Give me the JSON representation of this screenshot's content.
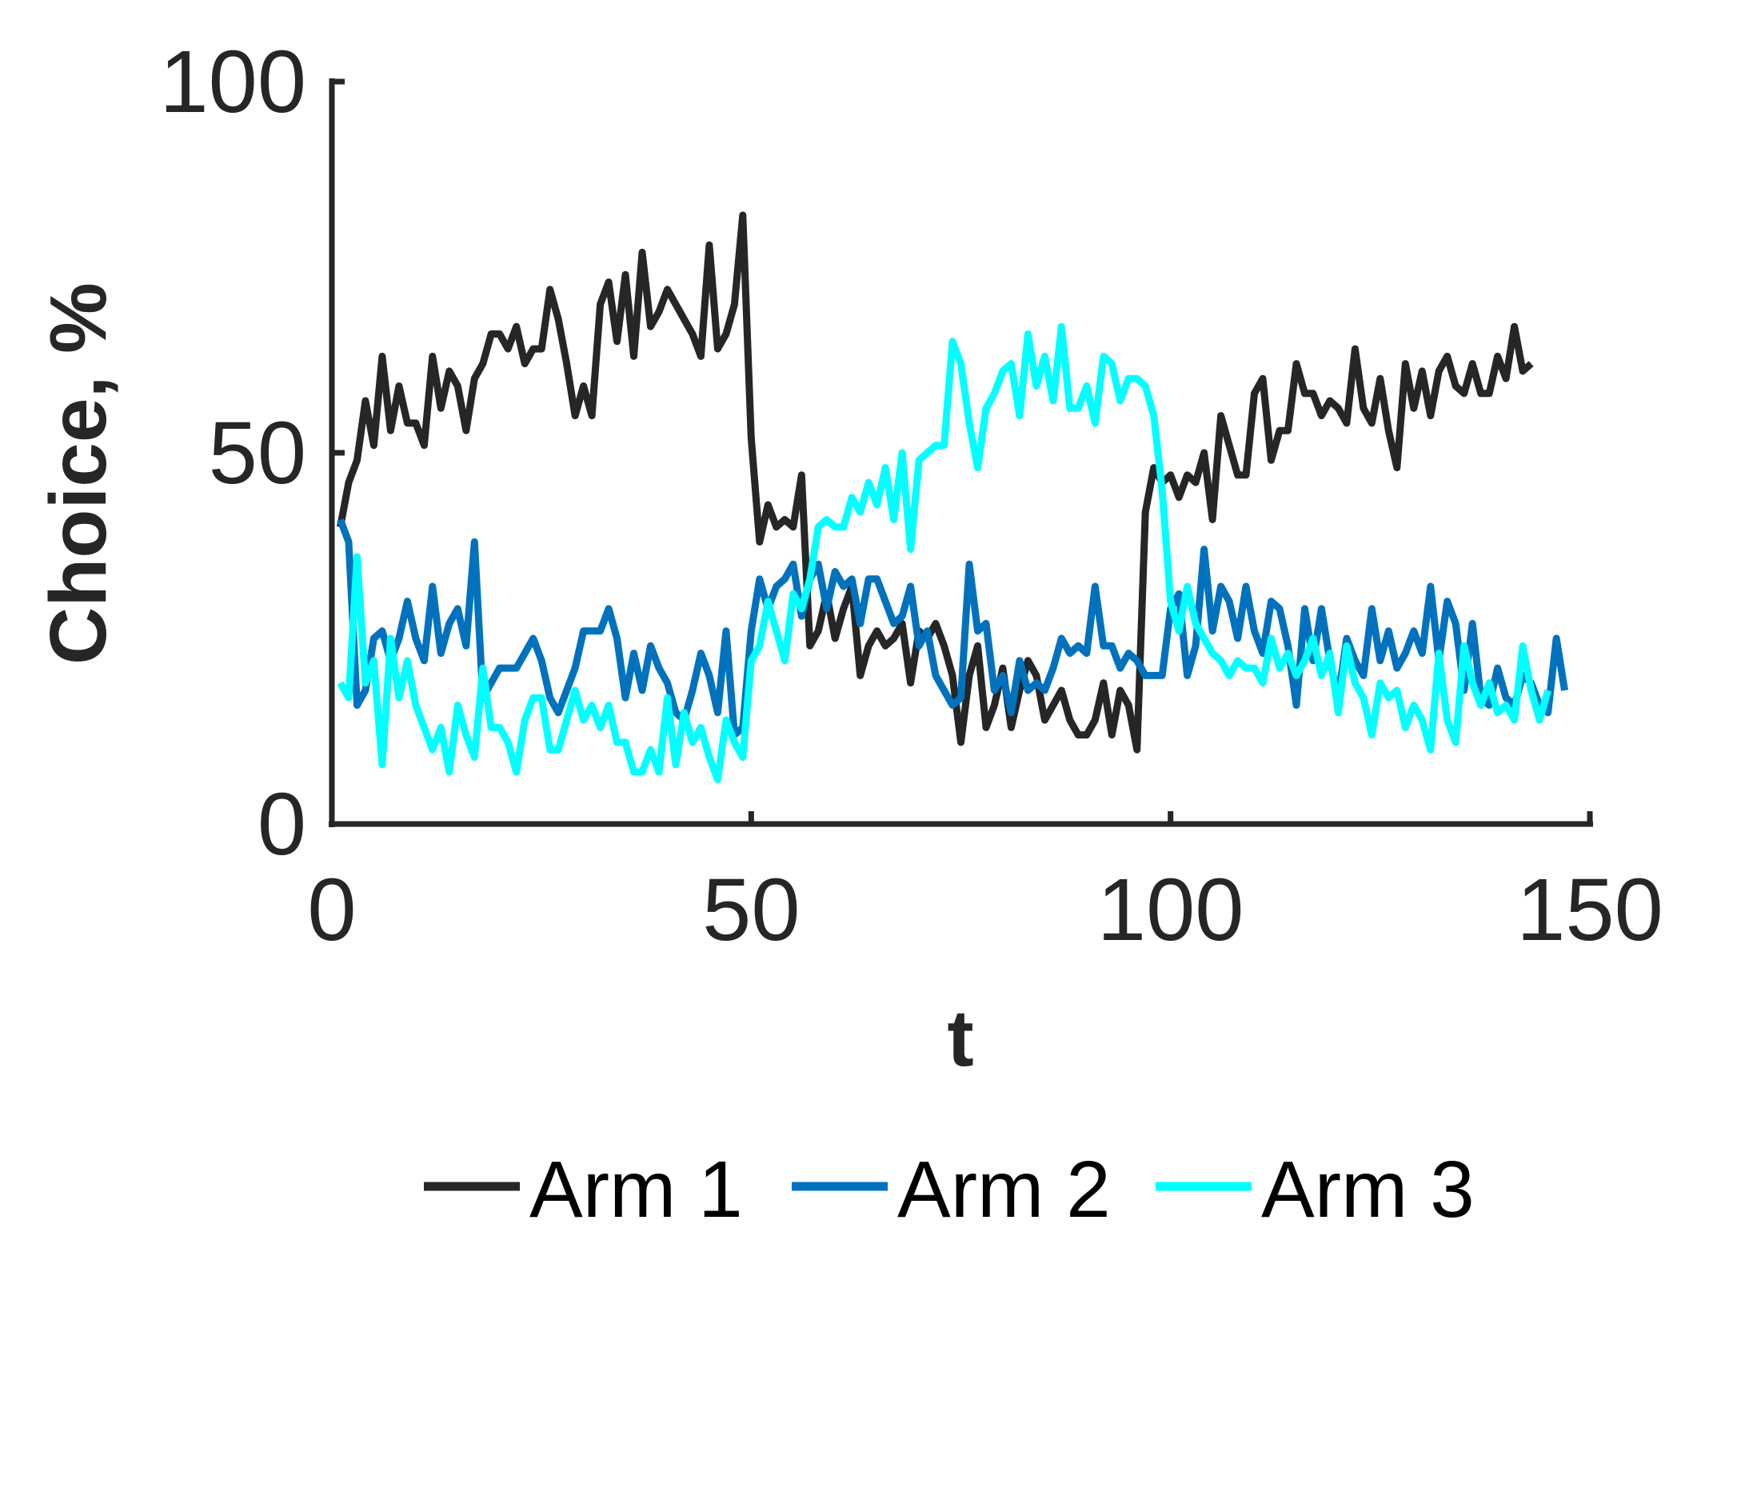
{
  "chart_data": {
    "type": "line",
    "xlabel": "t",
    "ylabel": "Choice, %",
    "xlim": [
      0,
      150
    ],
    "ylim": [
      0,
      100
    ],
    "xticks": [
      0,
      50,
      100,
      150
    ],
    "yticks": [
      0,
      50,
      100
    ],
    "grid": false,
    "legend_placement": "bottom",
    "series": [
      {
        "name": "Arm 1",
        "color": "#262626",
        "values": [
          40,
          46,
          49,
          57,
          51,
          63,
          53,
          59,
          54,
          54,
          51,
          63,
          56,
          61,
          59,
          53,
          60,
          62,
          66,
          66,
          64,
          67,
          62,
          64,
          64,
          72,
          68,
          62,
          55,
          59,
          55,
          70,
          73,
          65,
          74,
          63,
          77,
          67,
          69,
          72,
          70,
          68,
          66,
          63,
          78,
          64,
          66,
          70,
          82,
          52,
          38,
          43,
          40,
          41,
          40,
          47,
          24,
          26,
          31,
          25,
          29,
          32,
          20,
          24,
          26,
          24,
          25,
          27,
          19,
          26,
          25,
          27,
          24,
          20,
          11,
          20,
          24,
          13,
          16,
          21,
          13,
          18,
          22,
          20,
          14,
          16,
          18,
          14,
          12,
          12,
          14,
          19,
          12,
          18,
          16,
          10,
          42,
          48,
          46,
          47,
          44,
          47,
          46,
          50,
          41,
          55,
          51,
          47,
          47,
          58,
          60,
          49,
          53,
          53,
          62,
          58,
          58,
          55,
          57,
          56,
          54,
          64,
          56,
          54,
          60,
          53,
          48,
          62,
          56,
          61,
          55,
          61,
          63,
          59,
          58,
          62,
          58,
          58,
          63,
          60,
          67,
          61,
          62
        ]
      },
      {
        "name": "Arm 2",
        "color": "#0072bd",
        "values": [
          41,
          38,
          16,
          18,
          25,
          26,
          22,
          25,
          30,
          25,
          22,
          32,
          23,
          27,
          29,
          24,
          38,
          17,
          19,
          21,
          21,
          21,
          23,
          25,
          22,
          17,
          15,
          18,
          21,
          26,
          26,
          26,
          29,
          25,
          17,
          23,
          18,
          24,
          21,
          19,
          15,
          14,
          18,
          23,
          20,
          15,
          26,
          12,
          13,
          26,
          33,
          29,
          32,
          33,
          35,
          28,
          33,
          35,
          29,
          34,
          32,
          33,
          27,
          33,
          33,
          30,
          27,
          28,
          32,
          24,
          26,
          20,
          18,
          16,
          17,
          35,
          26,
          27,
          18,
          20,
          15,
          22,
          18,
          19,
          18,
          21,
          25,
          23,
          24,
          23,
          32,
          24,
          24,
          21,
          23,
          22,
          20,
          20,
          20,
          29,
          31,
          20,
          24,
          37,
          26,
          32,
          30,
          25,
          32,
          26,
          23,
          30,
          29,
          24,
          16,
          29,
          22,
          29,
          22,
          17,
          25,
          22,
          20,
          29,
          22,
          26,
          21,
          23,
          26,
          23,
          32,
          22,
          30,
          27,
          18,
          27,
          17,
          16,
          21,
          17,
          16,
          20,
          19,
          16,
          15,
          25,
          18
        ]
      },
      {
        "name": "Arm 3",
        "color": "#00ffff",
        "values": [
          19,
          17,
          36,
          19,
          22,
          8,
          25,
          17,
          22,
          16,
          13,
          10,
          13,
          7,
          16,
          12,
          9,
          21,
          13,
          13,
          11,
          7,
          14,
          17,
          17,
          10,
          10,
          14,
          18,
          14,
          16,
          13,
          16,
          11,
          11,
          7,
          7,
          10,
          7,
          17,
          8,
          15,
          11,
          13,
          9,
          6,
          14,
          11,
          9,
          22,
          24,
          30,
          26,
          22,
          31,
          29,
          33,
          40,
          41,
          40,
          40,
          44,
          42,
          46,
          43,
          48,
          41,
          50,
          37,
          49,
          50,
          51,
          51,
          65,
          62,
          54,
          48,
          56,
          58,
          61,
          62,
          55,
          66,
          59,
          63,
          57,
          67,
          56,
          56,
          59,
          54,
          63,
          62,
          57,
          60,
          60,
          59,
          55,
          45,
          30,
          26,
          32,
          27,
          25,
          23,
          22,
          20,
          22,
          21,
          21,
          19,
          25,
          21,
          23,
          20,
          22,
          25,
          20,
          23,
          15,
          24,
          19,
          17,
          12,
          19,
          17,
          18,
          13,
          16,
          14,
          10,
          23,
          14,
          11,
          24,
          19,
          16,
          19,
          15,
          16,
          14,
          24,
          18,
          14,
          18
        ]
      }
    ]
  }
}
